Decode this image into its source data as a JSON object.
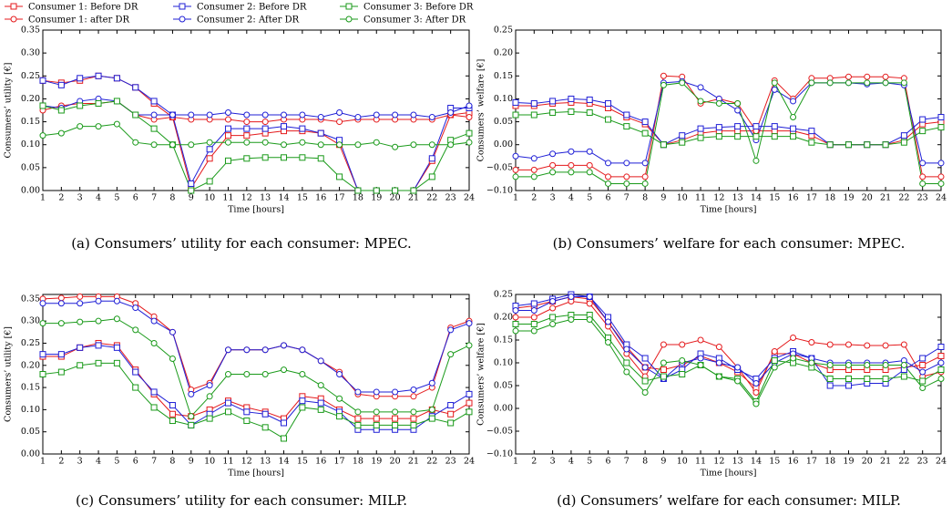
{
  "legend": [
    {
      "name": "Consumer 1: Before DR",
      "color": "#e41a1c",
      "marker": "square"
    },
    {
      "name": "Consumer 1: after DR",
      "color": "#e41a1c",
      "marker": "circle"
    },
    {
      "name": "Consumer 2: Before DR",
      "color": "#1f1fd6",
      "marker": "square"
    },
    {
      "name": "Consumer 2: After DR",
      "color": "#1f1fd6",
      "marker": "circle"
    },
    {
      "name": "Consumer 3: Before DR",
      "color": "#1a9a1a",
      "marker": "square"
    },
    {
      "name": "Consumer 3: After DR",
      "color": "#1a9a1a",
      "marker": "circle"
    }
  ],
  "chart_data": [
    {
      "type": "line",
      "caption": "(a) Consumers’ utility for each consumer: MPEC.",
      "xlabel": "Time [hours]",
      "ylabel": "Consumers’ utility [€]",
      "x": [
        1,
        2,
        3,
        4,
        5,
        6,
        7,
        8,
        9,
        10,
        11,
        12,
        13,
        14,
        15,
        16,
        17,
        18,
        19,
        20,
        21,
        22,
        23,
        24
      ],
      "xlim": [
        1,
        24
      ],
      "xticks": [
        1,
        2,
        3,
        4,
        5,
        6,
        7,
        8,
        9,
        10,
        11,
        12,
        13,
        14,
        15,
        16,
        17,
        18,
        19,
        20,
        21,
        22,
        23,
        24
      ],
      "ylim": [
        0,
        0.35
      ],
      "yticks": [
        {
          "value": 0,
          "label": "0.00"
        },
        {
          "value": 0.05,
          "label": "0.05"
        },
        {
          "value": 0.1,
          "label": "0.10"
        },
        {
          "value": 0.15,
          "label": "0.15"
        },
        {
          "value": 0.2,
          "label": "0.20"
        },
        {
          "value": 0.25,
          "label": "0.25"
        },
        {
          "value": 0.3,
          "label": "0.30"
        },
        {
          "value": 0.35,
          "label": "0.35"
        }
      ],
      "series": [
        {
          "values": [
            0.24,
            0.235,
            0.24,
            0.25,
            0.245,
            0.225,
            0.19,
            0.16,
            0.005,
            0.07,
            0.12,
            0.12,
            0.125,
            0.13,
            0.13,
            0.125,
            0.1,
            0,
            0,
            0,
            0,
            0.065,
            0.165,
            0.17
          ]
        },
        {
          "values": [
            0.175,
            0.185,
            0.19,
            0.19,
            0.195,
            0.165,
            0.155,
            0.16,
            0.155,
            0.155,
            0.155,
            0.15,
            0.15,
            0.155,
            0.155,
            0.155,
            0.15,
            0.155,
            0.155,
            0.155,
            0.155,
            0.155,
            0.165,
            0.16
          ]
        },
        {
          "values": [
            0.24,
            0.23,
            0.245,
            0.25,
            0.245,
            0.225,
            0.195,
            0.165,
            0.015,
            0.09,
            0.135,
            0.135,
            0.135,
            0.14,
            0.135,
            0.125,
            0.11,
            0,
            0,
            0,
            0,
            0.07,
            0.18,
            0.18
          ]
        },
        {
          "values": [
            0.185,
            0.18,
            0.195,
            0.2,
            0.195,
            0.165,
            0.165,
            0.165,
            0.165,
            0.165,
            0.17,
            0.165,
            0.165,
            0.165,
            0.165,
            0.16,
            0.17,
            0.16,
            0.165,
            0.165,
            0.165,
            0.16,
            0.17,
            0.185
          ]
        },
        {
          "values": [
            0.185,
            0.175,
            0.185,
            0.19,
            0.195,
            0.165,
            0.135,
            0.1,
            0,
            0.02,
            0.065,
            0.07,
            0.072,
            0.072,
            0.072,
            0.07,
            0.03,
            0,
            0,
            0,
            0,
            0.03,
            0.11,
            0.125
          ]
        },
        {
          "values": [
            0.12,
            0.125,
            0.14,
            0.14,
            0.145,
            0.105,
            0.1,
            0.1,
            0.1,
            0.105,
            0.105,
            0.105,
            0.105,
            0.1,
            0.105,
            0.1,
            0.1,
            0.1,
            0.105,
            0.095,
            0.1,
            0.1,
            0.1,
            0.105
          ]
        }
      ]
    },
    {
      "type": "line",
      "caption": "(b) Consumers’ welfare for each consumer: MPEC.",
      "xlabel": "Time [hours]",
      "ylabel": "Consumers’ welfare [€]",
      "x": [
        1,
        2,
        3,
        4,
        5,
        6,
        7,
        8,
        9,
        10,
        11,
        12,
        13,
        14,
        15,
        16,
        17,
        18,
        19,
        20,
        21,
        22,
        23,
        24
      ],
      "xlim": [
        1,
        24
      ],
      "xticks": [
        1,
        2,
        3,
        4,
        5,
        6,
        7,
        8,
        9,
        10,
        11,
        12,
        13,
        14,
        15,
        16,
        17,
        18,
        19,
        20,
        21,
        22,
        23,
        24
      ],
      "ylim": [
        -0.1,
        0.25
      ],
      "yticks": [
        {
          "value": -0.1,
          "label": "−0.10"
        },
        {
          "value": -0.05,
          "label": "−0.05"
        },
        {
          "value": 0,
          "label": "0.00"
        },
        {
          "value": 0.05,
          "label": "0.05"
        },
        {
          "value": 0.1,
          "label": "0.10"
        },
        {
          "value": 0.15,
          "label": "0.15"
        },
        {
          "value": 0.2,
          "label": "0.20"
        },
        {
          "value": 0.25,
          "label": "0.25"
        }
      ],
      "series": [
        {
          "values": [
            0.085,
            0.085,
            0.09,
            0.092,
            0.09,
            0.08,
            0.06,
            0.045,
            0,
            0.01,
            0.025,
            0.03,
            0.03,
            0.03,
            0.03,
            0.03,
            0.02,
            0,
            0,
            0,
            0,
            0.01,
            0.045,
            0.05
          ]
        },
        {
          "values": [
            -0.055,
            -0.055,
            -0.045,
            -0.045,
            -0.045,
            -0.07,
            -0.07,
            -0.07,
            0.15,
            0.148,
            0.09,
            0.1,
            0.09,
            0.03,
            0.14,
            0.1,
            0.145,
            0.145,
            0.148,
            0.148,
            0.148,
            0.145,
            -0.07,
            -0.07
          ]
        },
        {
          "values": [
            0.092,
            0.09,
            0.095,
            0.1,
            0.098,
            0.09,
            0.065,
            0.05,
            0,
            0.02,
            0.035,
            0.038,
            0.04,
            0.04,
            0.04,
            0.035,
            0.03,
            0,
            0,
            0,
            0,
            0.02,
            0.055,
            0.06
          ]
        },
        {
          "values": [
            -0.025,
            -0.03,
            -0.02,
            -0.015,
            -0.015,
            -0.04,
            -0.04,
            -0.04,
            0.135,
            0.138,
            0.125,
            0.1,
            0.075,
            0.01,
            0.12,
            0.095,
            0.135,
            0.135,
            0.135,
            0.132,
            0.135,
            0.13,
            -0.04,
            -0.04
          ]
        },
        {
          "values": [
            0.065,
            0.065,
            0.07,
            0.072,
            0.07,
            0.055,
            0.04,
            0.025,
            0,
            0.005,
            0.015,
            0.018,
            0.018,
            0.018,
            0.018,
            0.018,
            0.005,
            0,
            0,
            0,
            0,
            0.005,
            0.03,
            0.038
          ]
        },
        {
          "values": [
            -0.07,
            -0.07,
            -0.06,
            -0.06,
            -0.06,
            -0.085,
            -0.085,
            -0.085,
            0.13,
            0.135,
            0.095,
            0.09,
            0.09,
            -0.035,
            0.135,
            0.06,
            0.135,
            0.135,
            0.135,
            0.135,
            0.135,
            0.135,
            -0.085,
            -0.085
          ]
        }
      ]
    },
    {
      "type": "line",
      "caption": "(c) Consumers’ utility for each consumer: MILP.",
      "xlabel": "Time [hours]",
      "ylabel": "Consumers’ utility [€]",
      "x": [
        1,
        2,
        3,
        4,
        5,
        6,
        7,
        8,
        9,
        10,
        11,
        12,
        13,
        14,
        15,
        16,
        17,
        18,
        19,
        20,
        21,
        22,
        23,
        24
      ],
      "xlim": [
        1,
        24
      ],
      "xticks": [
        1,
        2,
        3,
        4,
        5,
        6,
        7,
        8,
        9,
        10,
        11,
        12,
        13,
        14,
        15,
        16,
        17,
        18,
        19,
        20,
        21,
        22,
        23,
        24
      ],
      "ylim": [
        0,
        0.36
      ],
      "yticks": [
        {
          "value": 0,
          "label": "0.00"
        },
        {
          "value": 0.05,
          "label": "0.05"
        },
        {
          "value": 0.1,
          "label": "0.10"
        },
        {
          "value": 0.15,
          "label": "0.15"
        },
        {
          "value": 0.2,
          "label": "0.20"
        },
        {
          "value": 0.25,
          "label": "0.25"
        },
        {
          "value": 0.3,
          "label": "0.30"
        },
        {
          "value": 0.35,
          "label": "0.35"
        }
      ],
      "series": [
        {
          "values": [
            0.22,
            0.22,
            0.24,
            0.25,
            0.245,
            0.19,
            0.135,
            0.09,
            0.085,
            0.1,
            0.12,
            0.105,
            0.095,
            0.08,
            0.13,
            0.125,
            0.1,
            0.08,
            0.08,
            0.08,
            0.08,
            0.1,
            0.09,
            0.115
          ]
        },
        {
          "values": [
            0.35,
            0.352,
            0.355,
            0.355,
            0.355,
            0.34,
            0.31,
            0.275,
            0.145,
            0.16,
            0.235,
            0.235,
            0.235,
            0.245,
            0.235,
            0.21,
            0.185,
            0.135,
            0.13,
            0.13,
            0.13,
            0.15,
            0.285,
            0.3
          ]
        },
        {
          "values": [
            0.225,
            0.225,
            0.24,
            0.245,
            0.24,
            0.185,
            0.14,
            0.11,
            0.065,
            0.09,
            0.115,
            0.095,
            0.09,
            0.07,
            0.12,
            0.115,
            0.095,
            0.055,
            0.055,
            0.055,
            0.055,
            0.085,
            0.11,
            0.135
          ]
        },
        {
          "values": [
            0.34,
            0.34,
            0.34,
            0.345,
            0.345,
            0.33,
            0.3,
            0.275,
            0.135,
            0.155,
            0.235,
            0.235,
            0.235,
            0.245,
            0.235,
            0.21,
            0.18,
            0.14,
            0.14,
            0.14,
            0.145,
            0.16,
            0.28,
            0.295
          ]
        },
        {
          "values": [
            0.18,
            0.185,
            0.2,
            0.205,
            0.205,
            0.15,
            0.105,
            0.075,
            0.065,
            0.08,
            0.095,
            0.075,
            0.06,
            0.035,
            0.105,
            0.1,
            0.085,
            0.065,
            0.065,
            0.065,
            0.065,
            0.08,
            0.07,
            0.095
          ]
        },
        {
          "values": [
            0.295,
            0.295,
            0.298,
            0.3,
            0.305,
            0.28,
            0.25,
            0.215,
            0.085,
            0.13,
            0.18,
            0.18,
            0.18,
            0.19,
            0.18,
            0.155,
            0.125,
            0.095,
            0.095,
            0.095,
            0.095,
            0.1,
            0.225,
            0.245
          ]
        }
      ]
    },
    {
      "type": "line",
      "caption": "(d) Consumers’ welfare for each consumer: MILP.",
      "xlabel": "Time [hours]",
      "ylabel": "Consumers’ welfare [€]",
      "x": [
        1,
        2,
        3,
        4,
        5,
        6,
        7,
        8,
        9,
        10,
        11,
        12,
        13,
        14,
        15,
        16,
        17,
        18,
        19,
        20,
        21,
        22,
        23,
        24
      ],
      "xlim": [
        1,
        24
      ],
      "xticks": [
        1,
        2,
        3,
        4,
        5,
        6,
        7,
        8,
        9,
        10,
        11,
        12,
        13,
        14,
        15,
        16,
        17,
        18,
        19,
        20,
        21,
        22,
        23,
        24
      ],
      "ylim": [
        -0.1,
        0.25
      ],
      "yticks": [
        {
          "value": -0.1,
          "label": "−0.10"
        },
        {
          "value": -0.05,
          "label": "−0.05"
        },
        {
          "value": 0,
          "label": "0.00"
        },
        {
          "value": 0.05,
          "label": "0.05"
        },
        {
          "value": 0.1,
          "label": "0.10"
        },
        {
          "value": 0.15,
          "label": "0.15"
        },
        {
          "value": 0.2,
          "label": "0.20"
        },
        {
          "value": 0.25,
          "label": "0.25"
        }
      ],
      "series": [
        {
          "values": [
            0.22,
            0.225,
            0.235,
            0.245,
            0.24,
            0.19,
            0.135,
            0.09,
            0.085,
            0.095,
            0.115,
            0.1,
            0.08,
            0.045,
            0.12,
            0.12,
            0.1,
            0.085,
            0.085,
            0.085,
            0.085,
            0.09,
            0.095,
            0.115
          ]
        },
        {
          "values": [
            0.2,
            0.2,
            0.22,
            0.235,
            0.23,
            0.18,
            0.12,
            0.07,
            0.14,
            0.14,
            0.15,
            0.135,
            0.09,
            0.035,
            0.125,
            0.155,
            0.145,
            0.14,
            0.14,
            0.138,
            0.138,
            0.14,
            0.07,
            0.08
          ]
        },
        {
          "values": [
            0.225,
            0.23,
            0.24,
            0.25,
            0.245,
            0.2,
            0.14,
            0.11,
            0.065,
            0.085,
            0.12,
            0.11,
            0.085,
            0.065,
            0.11,
            0.125,
            0.11,
            0.05,
            0.05,
            0.055,
            0.055,
            0.085,
            0.11,
            0.135
          ]
        },
        {
          "values": [
            0.215,
            0.215,
            0.235,
            0.245,
            0.245,
            0.19,
            0.13,
            0.09,
            0.065,
            0.1,
            0.11,
            0.1,
            0.09,
            0.055,
            0.1,
            0.12,
            0.11,
            0.1,
            0.1,
            0.1,
            0.1,
            0.105,
            0.08,
            0.1
          ]
        },
        {
          "values": [
            0.185,
            0.185,
            0.2,
            0.205,
            0.205,
            0.155,
            0.1,
            0.06,
            0.07,
            0.075,
            0.095,
            0.07,
            0.065,
            0.015,
            0.105,
            0.1,
            0.09,
            0.065,
            0.065,
            0.065,
            0.065,
            0.07,
            0.06,
            0.085
          ]
        },
        {
          "values": [
            0.17,
            0.17,
            0.185,
            0.195,
            0.195,
            0.145,
            0.08,
            0.035,
            0.1,
            0.105,
            0.095,
            0.07,
            0.06,
            0.01,
            0.09,
            0.11,
            0.1,
            0.095,
            0.095,
            0.095,
            0.095,
            0.095,
            0.045,
            0.065
          ]
        }
      ]
    }
  ]
}
